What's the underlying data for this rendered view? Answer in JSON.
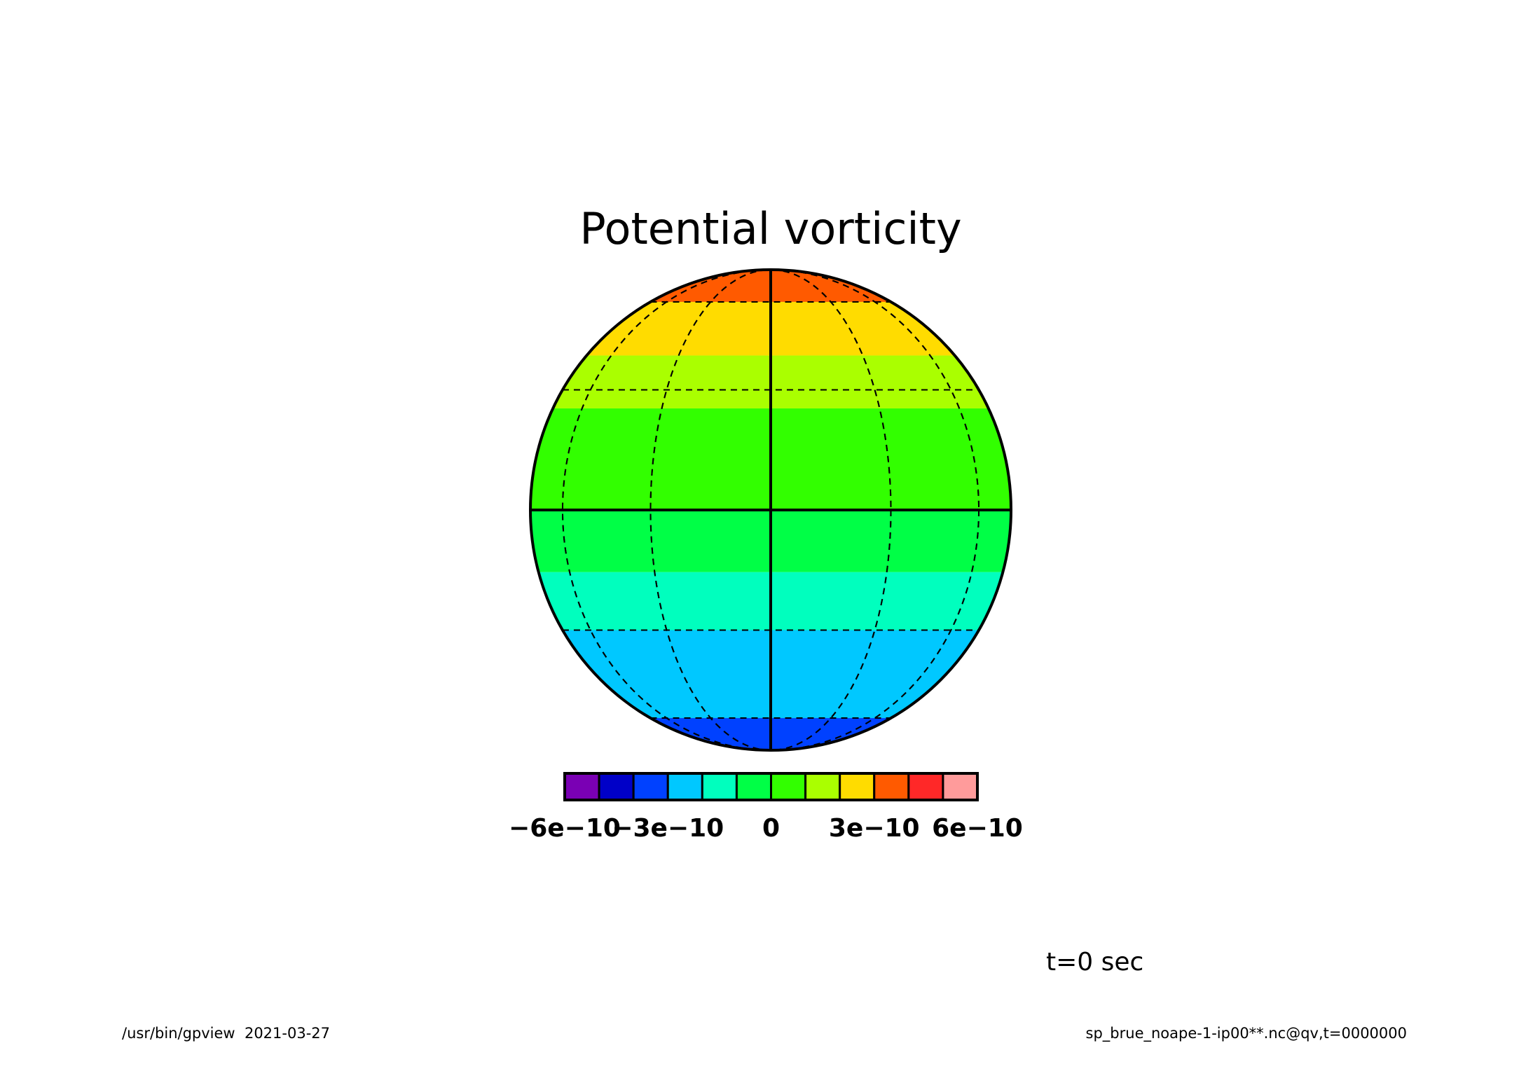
{
  "chart_data": {
    "type": "heatmap",
    "projection": "orthographic",
    "title": "Potential vorticity",
    "colorbar": {
      "colors": [
        "#7a00b4",
        "#0000c8",
        "#0041ff",
        "#00c8ff",
        "#00ffbe",
        "#00ff46",
        "#32ff00",
        "#aaff00",
        "#ffdc00",
        "#ff5a00",
        "#ff2828",
        "#ff9b9b"
      ],
      "ticks": [
        {
          "value": -6e-10,
          "label": "−6e−10"
        },
        {
          "value": -3e-10,
          "label": "−3e−10"
        },
        {
          "value": 0,
          "label": "0"
        },
        {
          "value": 3e-10,
          "label": "3e−10"
        },
        {
          "value": 6e-10,
          "label": "6e−10"
        }
      ],
      "range": [
        -6e-10,
        6e-10
      ]
    },
    "bands": [
      {
        "lat_from": 60,
        "lat_to": 90,
        "color": "#ff5a00"
      },
      {
        "lat_from": 40,
        "lat_to": 60,
        "color": "#ffdc00"
      },
      {
        "lat_from": 25,
        "lat_to": 40,
        "color": "#aaff00"
      },
      {
        "lat_from": 0,
        "lat_to": 25,
        "color": "#32ff00"
      },
      {
        "lat_from": -15,
        "lat_to": 0,
        "color": "#00ff46"
      },
      {
        "lat_from": -30,
        "lat_to": -15,
        "color": "#00ffbe"
      },
      {
        "lat_from": -60,
        "lat_to": -30,
        "color": "#00c8ff"
      },
      {
        "lat_from": -90,
        "lat_to": -60,
        "color": "#0041ff"
      }
    ],
    "graticule": {
      "latitudes": [
        -60,
        -30,
        30,
        60
      ],
      "longitudes_dashed": [
        -60,
        -30,
        30,
        60,
        -90,
        90
      ],
      "solid": [
        "equator",
        "central_meridian"
      ]
    }
  },
  "time_label": "t=0 sec",
  "footer": {
    "left": "/usr/bin/gpview  2021-03-27",
    "right": "sp_brue_noape-1-ip00**.nc@qv,t=0000000"
  }
}
